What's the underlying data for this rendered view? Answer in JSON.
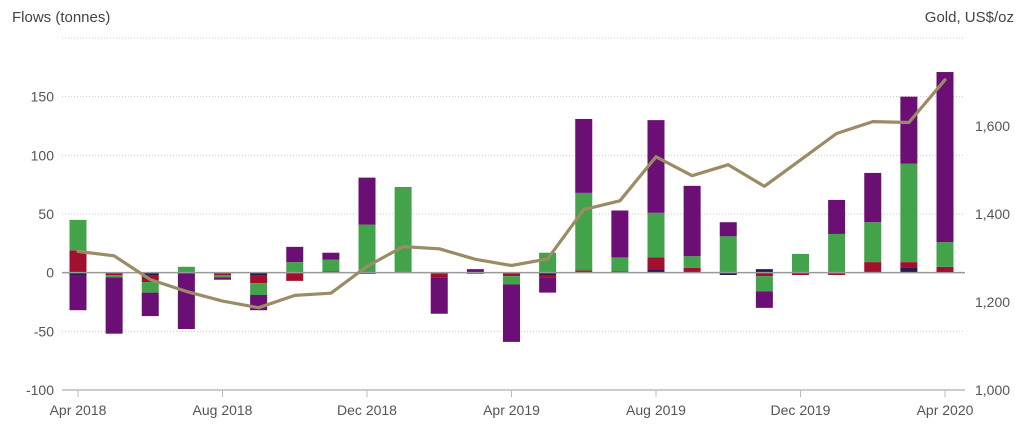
{
  "chart_data": {
    "type": "bar",
    "stacked": true,
    "left_axis_title": "Flows (tonnes)",
    "right_axis_title": "Gold, US$/oz",
    "ylim": [
      -100,
      200
    ],
    "y_ticks": [
      -100,
      -50,
      0,
      50,
      100,
      150
    ],
    "y_tick_labels": [
      "-100",
      "-50",
      "0",
      "50",
      "100",
      "150"
    ],
    "y2lim": [
      1000,
      1800
    ],
    "y2_ticks": [
      1000,
      1200,
      1400,
      1600
    ],
    "y2_tick_labels": [
      "1,000",
      "1,200",
      "1,400",
      "1,600"
    ],
    "x_tick_labels": [
      {
        "index": 0,
        "label": "Apr 2018"
      },
      {
        "index": 4,
        "label": "Aug 2018"
      },
      {
        "index": 8,
        "label": "Dec 2018"
      },
      {
        "index": 12,
        "label": "Apr 2019"
      },
      {
        "index": 16,
        "label": "Aug 2019"
      },
      {
        "index": 20,
        "label": "Dec 2019"
      },
      {
        "index": 24,
        "label": "Apr 2020"
      }
    ],
    "categories": [
      "Apr 2018",
      "May 2018",
      "Jun 2018",
      "Jul 2018",
      "Aug 2018",
      "Sep 2018",
      "Oct 2018",
      "Nov 2018",
      "Dec 2018",
      "Jan 2019",
      "Feb 2019",
      "Mar 2019",
      "Apr 2019",
      "May 2019",
      "Jun 2019",
      "Jul 2019",
      "Aug 2019",
      "Sep 2019",
      "Oct 2019",
      "Nov 2019",
      "Dec 2019",
      "Jan 2020",
      "Feb 2020",
      "Mar 2020",
      "Apr 2020"
    ],
    "series": [
      {
        "color": "#2b1a4f",
        "values": [
          -2,
          0,
          -2,
          0,
          -1,
          -2,
          0,
          0,
          -1,
          0,
          -1,
          0,
          -1,
          -2,
          0,
          0,
          3,
          0,
          -2,
          3,
          0,
          -1,
          0,
          4,
          1
        ]
      },
      {
        "color": "#a3102f",
        "values": [
          19,
          -2,
          -6,
          0,
          -1,
          -7,
          -7,
          1,
          0,
          0,
          -3,
          -1,
          -2,
          -2,
          2,
          1,
          10,
          4,
          0,
          -3,
          -2,
          -1,
          9,
          5,
          4
        ]
      },
      {
        "color": "#43a34b",
        "values": [
          26,
          -2,
          -9,
          5,
          -2,
          -10,
          9,
          10,
          41,
          73,
          0,
          0,
          -7,
          17,
          66,
          12,
          38,
          10,
          31,
          -13,
          16,
          33,
          34,
          84,
          21
        ]
      },
      {
        "color": "#6b0f74",
        "values": [
          -30,
          -48,
          -20,
          -48,
          -2,
          -13,
          13,
          6,
          40,
          0,
          -31,
          3,
          -49,
          -13,
          63,
          40,
          79,
          60,
          12,
          -14,
          0,
          29,
          42,
          57,
          145
        ]
      }
    ],
    "line_series": {
      "color": "#9c8c66",
      "axis": "right",
      "values": [
        1315,
        1305,
        1251,
        1224,
        1202,
        1187,
        1215,
        1220,
        1281,
        1326,
        1321,
        1297,
        1283,
        1298,
        1410,
        1430,
        1530,
        1487,
        1512,
        1463,
        1523,
        1583,
        1610,
        1608,
        1705
      ]
    },
    "grid": true,
    "legend": "none"
  }
}
